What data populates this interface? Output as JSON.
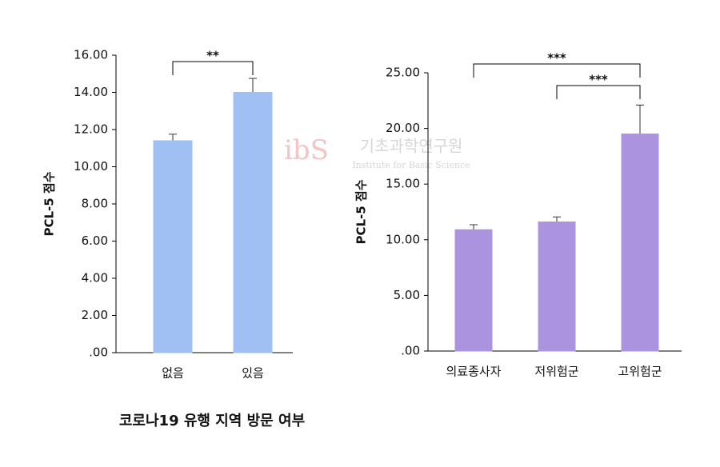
{
  "chart_data": [
    {
      "type": "bar",
      "y_label": "PCL-5 점수",
      "x_label": "코로나19 유행 지역 방문 여부",
      "categories": [
        "없음",
        "있음"
      ],
      "values": [
        11.4,
        14.0
      ],
      "errors": [
        0.35,
        0.75
      ],
      "color": "#a0c0f4",
      "ylim": [
        0,
        16
      ],
      "yticks": [
        {
          "value": 0,
          "label": ".00"
        },
        {
          "value": 2,
          "label": "2.00"
        },
        {
          "value": 4,
          "label": "4.00"
        },
        {
          "value": 6,
          "label": "6.00"
        },
        {
          "value": 8,
          "label": "8.00"
        },
        {
          "value": 10,
          "label": "10.00"
        },
        {
          "value": 12,
          "label": "12.00"
        },
        {
          "value": 14,
          "label": "14.00"
        },
        {
          "value": 16,
          "label": "16.00"
        }
      ],
      "annotations": [
        "**"
      ]
    },
    {
      "type": "bar",
      "y_label": "PCL-5 점수",
      "categories": [
        "의료종사자",
        "저위험군",
        "고위험군"
      ],
      "values": [
        10.9,
        11.6,
        19.5
      ],
      "errors": [
        0.45,
        0.45,
        2.6
      ],
      "color": "#ac93df",
      "ylim": [
        0,
        25
      ],
      "yticks": [
        {
          "value": 0,
          "label": ".00"
        },
        {
          "value": 5,
          "label": "5.00"
        },
        {
          "value": 10,
          "label": "10.00"
        },
        {
          "value": 15,
          "label": "15.00"
        },
        {
          "value": 20,
          "label": "20.00"
        },
        {
          "value": 25,
          "label": "25.00"
        }
      ],
      "annotations": [
        "***",
        "***"
      ]
    }
  ],
  "watermark": {
    "logo": "ibS",
    "name": "기초과학연구원",
    "english": "Institute for Basic Science"
  }
}
